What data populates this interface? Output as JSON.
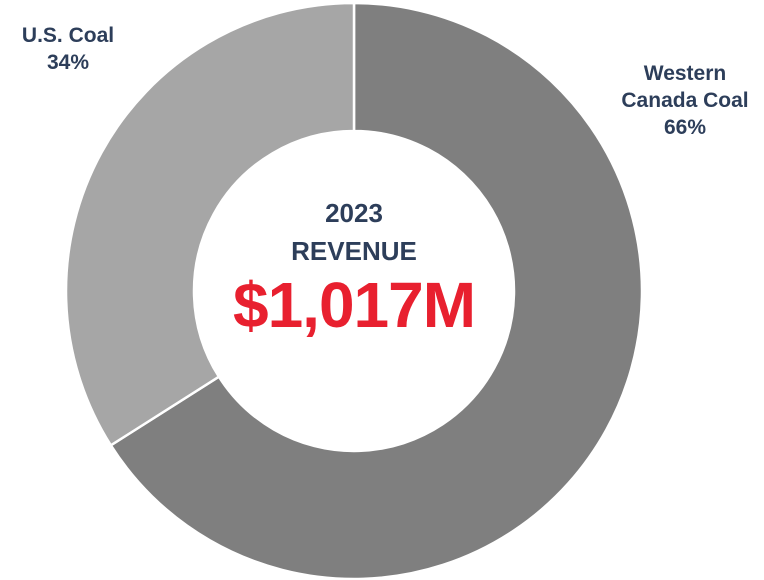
{
  "chart_data": {
    "type": "donut",
    "categories": [
      "Western Canada Coal",
      "U.S. Coal"
    ],
    "values": [
      66,
      34
    ],
    "value_labels": [
      "66%",
      "34%"
    ],
    "colors": [
      "#7f7f7f",
      "#a6a6a6"
    ],
    "center_title": [
      "2023",
      "REVENUE"
    ],
    "center_value": "$1,017M"
  }
}
